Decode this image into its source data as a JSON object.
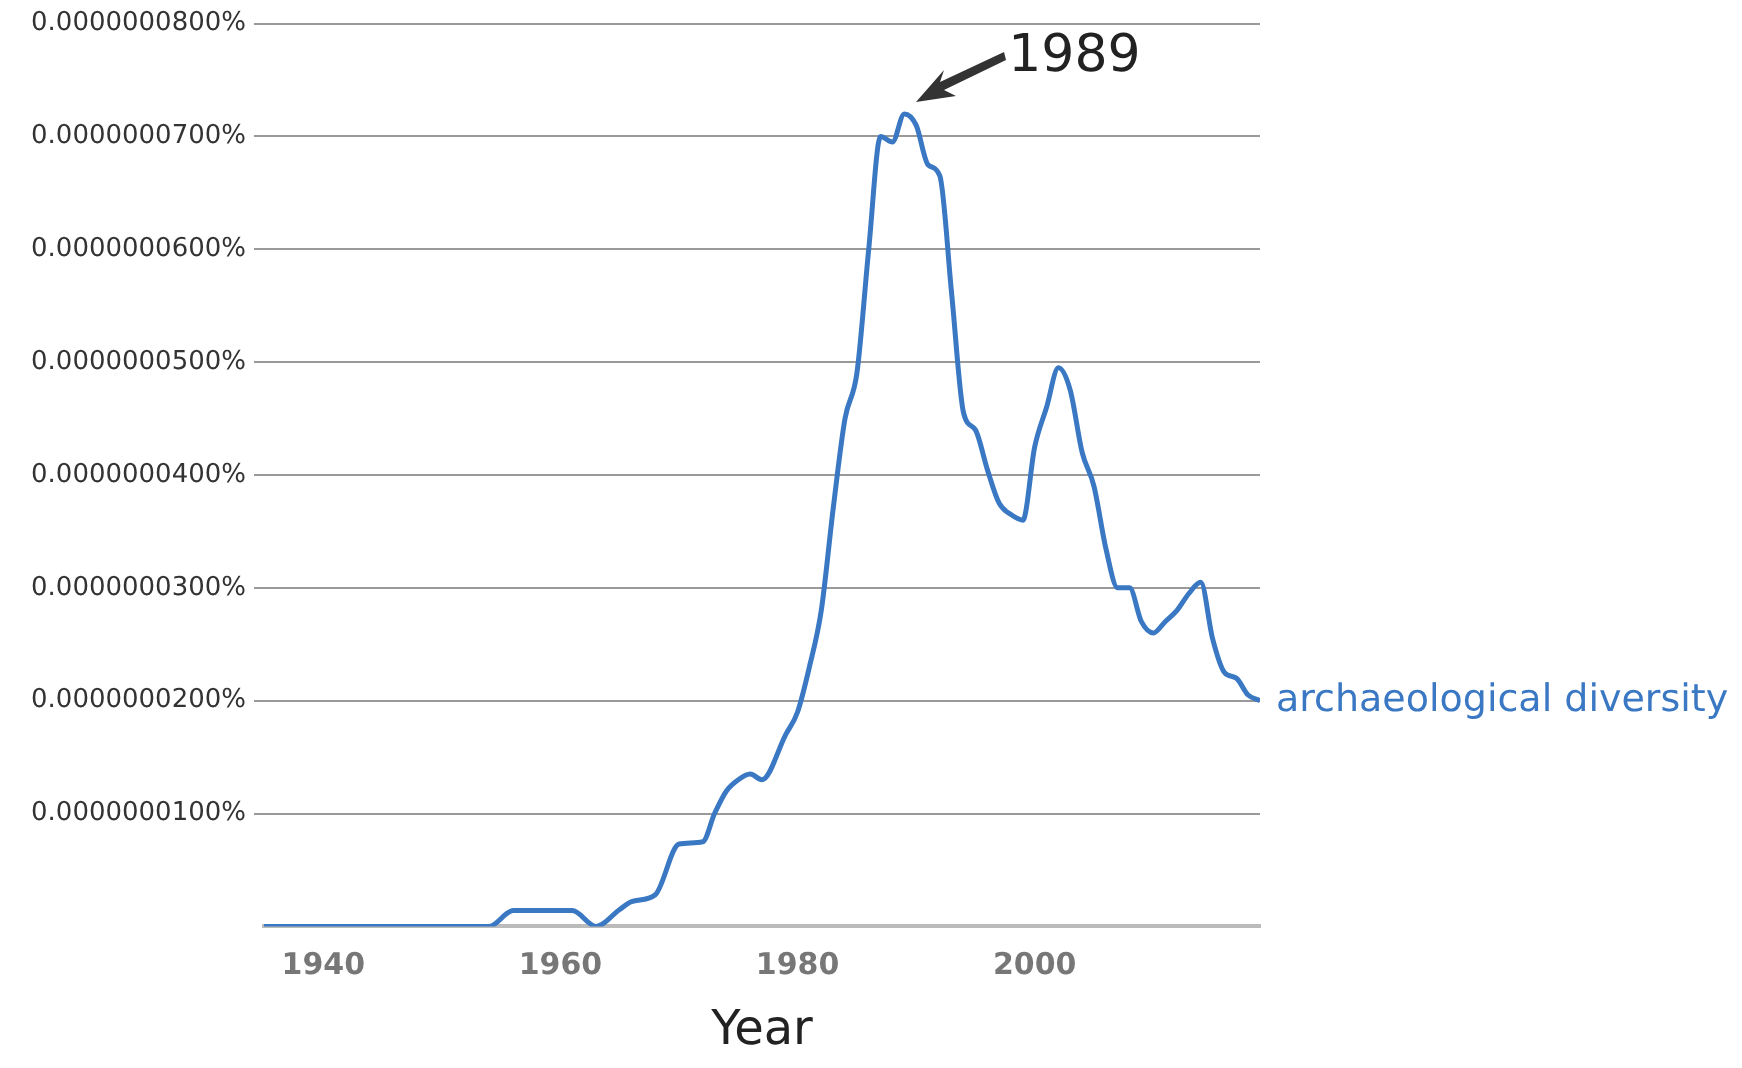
{
  "chart_data": {
    "type": "line",
    "xlabel": "Year",
    "x": [
      1935,
      1954,
      1956,
      1961,
      1963,
      1965,
      1966,
      1968,
      1970,
      1972,
      1973,
      1974,
      1975,
      1976,
      1977,
      1979,
      1980,
      1981,
      1982,
      1983,
      1984,
      1985,
      1986,
      1987,
      1988,
      1989,
      1990,
      1991,
      1992,
      1993,
      1994,
      1995,
      1996,
      1997,
      1998,
      1999,
      2000,
      2001,
      2002,
      2003,
      2004,
      2005,
      2006,
      2007,
      2008,
      2009,
      2010,
      2011,
      2012,
      2013,
      2014,
      2015,
      2016,
      2017,
      2018,
      2019
    ],
    "series": [
      {
        "name": "archaeological diversity",
        "color": "#3a78c3",
        "values": [
          0,
          0,
          1.4e-09,
          1.4e-09,
          0,
          1.5e-09,
          2.2e-09,
          2.8e-09,
          7.3e-09,
          7.5e-09,
          1e-08,
          1.2e-08,
          1.3e-08,
          1.35e-08,
          1.3e-08,
          1.7e-08,
          1.9e-08,
          2.3e-08,
          2.8e-08,
          3.7e-08,
          4.5e-08,
          4.9e-08,
          6e-08,
          7e-08,
          6.95e-08,
          7.2e-08,
          7.1e-08,
          6.75e-08,
          6.65e-08,
          5.6e-08,
          4.55e-08,
          4.4e-08,
          4.05e-08,
          3.75e-08,
          3.65e-08,
          3.6e-08,
          4.25e-08,
          4.6e-08,
          4.95e-08,
          4.75e-08,
          4.2e-08,
          3.9e-08,
          3.35e-08,
          3e-08,
          3e-08,
          2.7e-08,
          2.6e-08,
          2.7e-08,
          2.8e-08,
          2.95e-08,
          3.05e-08,
          2.55e-08,
          2.25e-08,
          2.2e-08,
          2.05e-08,
          2e-08
        ]
      }
    ],
    "xlim": [
      1935,
      2019
    ],
    "xticks": [
      1940,
      1960,
      1980,
      2000
    ],
    "ylim": [
      0,
      8e-08
    ],
    "yticks": [
      {
        "value": 1e-08,
        "label": "0.0000000100%"
      },
      {
        "value": 2e-08,
        "label": "0.0000000200%"
      },
      {
        "value": 3e-08,
        "label": "0.0000000300%"
      },
      {
        "value": 4e-08,
        "label": "0.0000000400%"
      },
      {
        "value": 5e-08,
        "label": "0.0000000500%"
      },
      {
        "value": 6e-08,
        "label": "0.0000000600%"
      },
      {
        "value": 7e-08,
        "label": "0.0000000700%"
      },
      {
        "value": 8e-08,
        "label": "0.0000000800%"
      }
    ],
    "grid": "y",
    "legend": false,
    "marker": "none",
    "line_style": "solid",
    "annotations": [
      "1989"
    ]
  }
}
